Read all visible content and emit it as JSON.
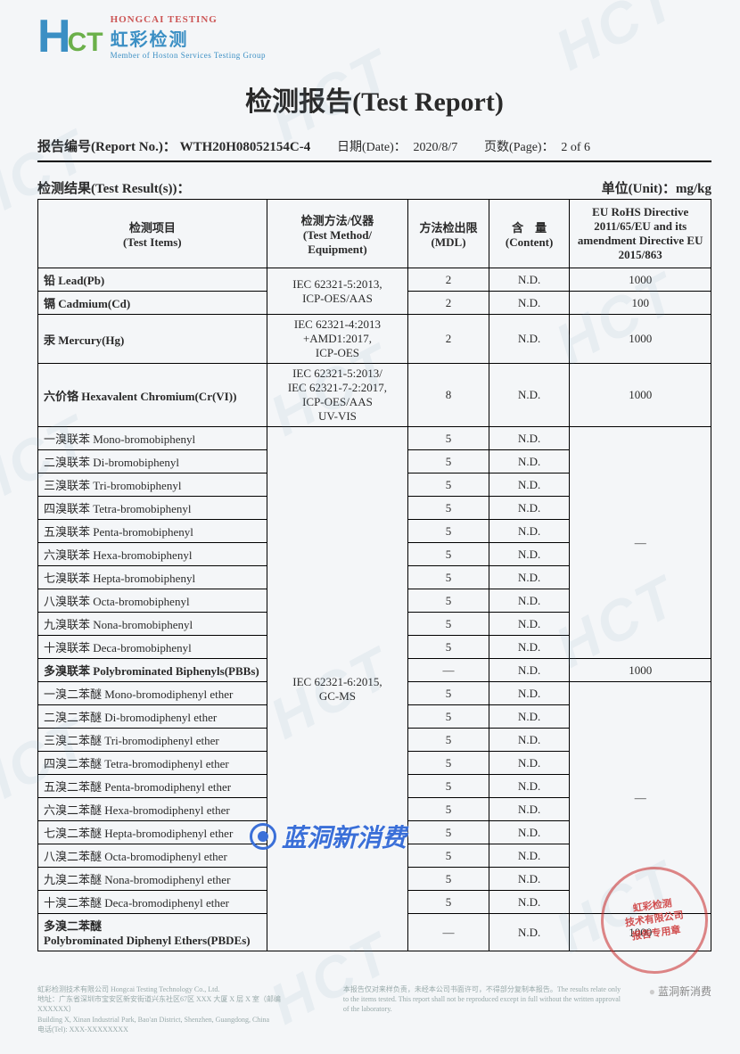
{
  "logo": {
    "mark_h": "H",
    "mark_ct": "CT",
    "en_small": "HONGCAI",
    "en_small2": "TESTING",
    "cn": "虹彩检测",
    "tagline": "Member of Hoston Services Testing Group"
  },
  "title": "检测报告(Test Report)",
  "meta": {
    "report_label": "报告编号(Report No.)：",
    "report_no": "WTH20H08052154C-4",
    "date_label": "日期(Date)：",
    "date_value": "2020/8/7",
    "page_label": "页数(Page)：",
    "page_value": "2 of 6"
  },
  "result_heading": "检测结果(Test Result(s))：",
  "unit_label": "单位(Unit)：",
  "unit_value": "mg/kg",
  "columns": {
    "item": "检测项目\n(Test Items)",
    "method": "检测方法/仪器\n(Test Method/\nEquipment)",
    "mdl": "方法检出限\n(MDL)",
    "content": "含　量\n(Content)",
    "directive": "EU RoHS Directive 2011/65/EU and its amendment Directive EU 2015/863"
  },
  "methods": {
    "m1": "IEC 62321-5:2013,\nICP-OES/AAS",
    "m2": "IEC 62321-4:2013\n+AMD1:2017,\nICP-OES",
    "m3": "IEC 62321-5:2013/\nIEC 62321-7-2:2017,\nICP-OES/AAS\nUV-VIS",
    "m4": "IEC 62321-6:2015,\nGC-MS"
  },
  "rows_top": [
    {
      "item": "铅 Lead(Pb)",
      "mdl": "2",
      "content": "N.D.",
      "dir": "1000"
    },
    {
      "item": "镉 Cadmium(Cd)",
      "mdl": "2",
      "content": "N.D.",
      "dir": "100"
    }
  ],
  "row_hg": {
    "item": "汞 Mercury(Hg)",
    "mdl": "2",
    "content": "N.D.",
    "dir": "1000"
  },
  "row_cr": {
    "item": "六价铬 Hexavalent Chromium(Cr(VI))",
    "mdl": "8",
    "content": "N.D.",
    "dir": "1000"
  },
  "pbb_rows": [
    {
      "item": "一溴联苯 Mono-bromobiphenyl",
      "mdl": "5",
      "content": "N.D."
    },
    {
      "item": "二溴联苯 Di-bromobiphenyl",
      "mdl": "5",
      "content": "N.D."
    },
    {
      "item": "三溴联苯 Tri-bromobiphenyl",
      "mdl": "5",
      "content": "N.D."
    },
    {
      "item": "四溴联苯 Tetra-bromobiphenyl",
      "mdl": "5",
      "content": "N.D."
    },
    {
      "item": "五溴联苯 Penta-bromobiphenyl",
      "mdl": "5",
      "content": "N.D."
    },
    {
      "item": "六溴联苯 Hexa-bromobiphenyl",
      "mdl": "5",
      "content": "N.D."
    },
    {
      "item": "七溴联苯 Hepta-bromobiphenyl",
      "mdl": "5",
      "content": "N.D."
    },
    {
      "item": "八溴联苯 Octa-bromobiphenyl",
      "mdl": "5",
      "content": "N.D."
    },
    {
      "item": "九溴联苯 Nona-bromobiphenyl",
      "mdl": "5",
      "content": "N.D."
    },
    {
      "item": "十溴联苯 Deca-bromobiphenyl",
      "mdl": "5",
      "content": "N.D."
    }
  ],
  "pbb_sum": {
    "item": "多溴联苯 Polybrominated Biphenyls(PBBs)",
    "mdl": "—",
    "content": "N.D.",
    "dir": "1000"
  },
  "pbde_rows": [
    {
      "item": "一溴二苯醚 Mono-bromodiphenyl ether",
      "mdl": "5",
      "content": "N.D."
    },
    {
      "item": "二溴二苯醚 Di-bromodiphenyl ether",
      "mdl": "5",
      "content": "N.D."
    },
    {
      "item": "三溴二苯醚 Tri-bromodiphenyl ether",
      "mdl": "5",
      "content": "N.D."
    },
    {
      "item": "四溴二苯醚 Tetra-bromodiphenyl ether",
      "mdl": "5",
      "content": "N.D."
    },
    {
      "item": "五溴二苯醚 Penta-bromodiphenyl ether",
      "mdl": "5",
      "content": "N.D."
    },
    {
      "item": "六溴二苯醚 Hexa-bromodiphenyl ether",
      "mdl": "5",
      "content": "N.D."
    },
    {
      "item": "七溴二苯醚 Hepta-bromodiphenyl ether",
      "mdl": "5",
      "content": "N.D."
    },
    {
      "item": "八溴二苯醚 Octa-bromodiphenyl ether",
      "mdl": "5",
      "content": "N.D."
    },
    {
      "item": "九溴二苯醚 Nona-bromodiphenyl ether",
      "mdl": "5",
      "content": "N.D."
    },
    {
      "item": "十溴二苯醚 Deca-bromodiphenyl ether",
      "mdl": "5",
      "content": "N.D."
    }
  ],
  "pbde_sum": {
    "item": "多溴二苯醚\nPolybrominated Diphenyl Ethers(PBDEs)",
    "mdl": "—",
    "content": "N.D.",
    "dir": "1000"
  },
  "dash": "—",
  "overlay_text": "蓝洞新消费",
  "seal_text": "虹彩检测\n技术有限公司\n报告专用章",
  "footer_left": "虹彩检测技术有限公司 Hongcai Testing Technology Co., Ltd.\n地址：广东省深圳市宝安区新安街道兴东社区67区 XXX 大厦 X 层 X 室（邮编XXXXXX）\nBuilding X, Xinan Industrial Park, Bao'an District, Shenzhen, Guangdong, China\n电话(Tel): XXX-XXXXXXXX",
  "footer_mid": "本报告仅对来样负责，未经本公司书面许可，不得部分复制本报告。The results relate only to the items tested. This report shall not be reproduced except in full without the written approval of the laboratory.",
  "footer_right": "蓝洞新消费"
}
